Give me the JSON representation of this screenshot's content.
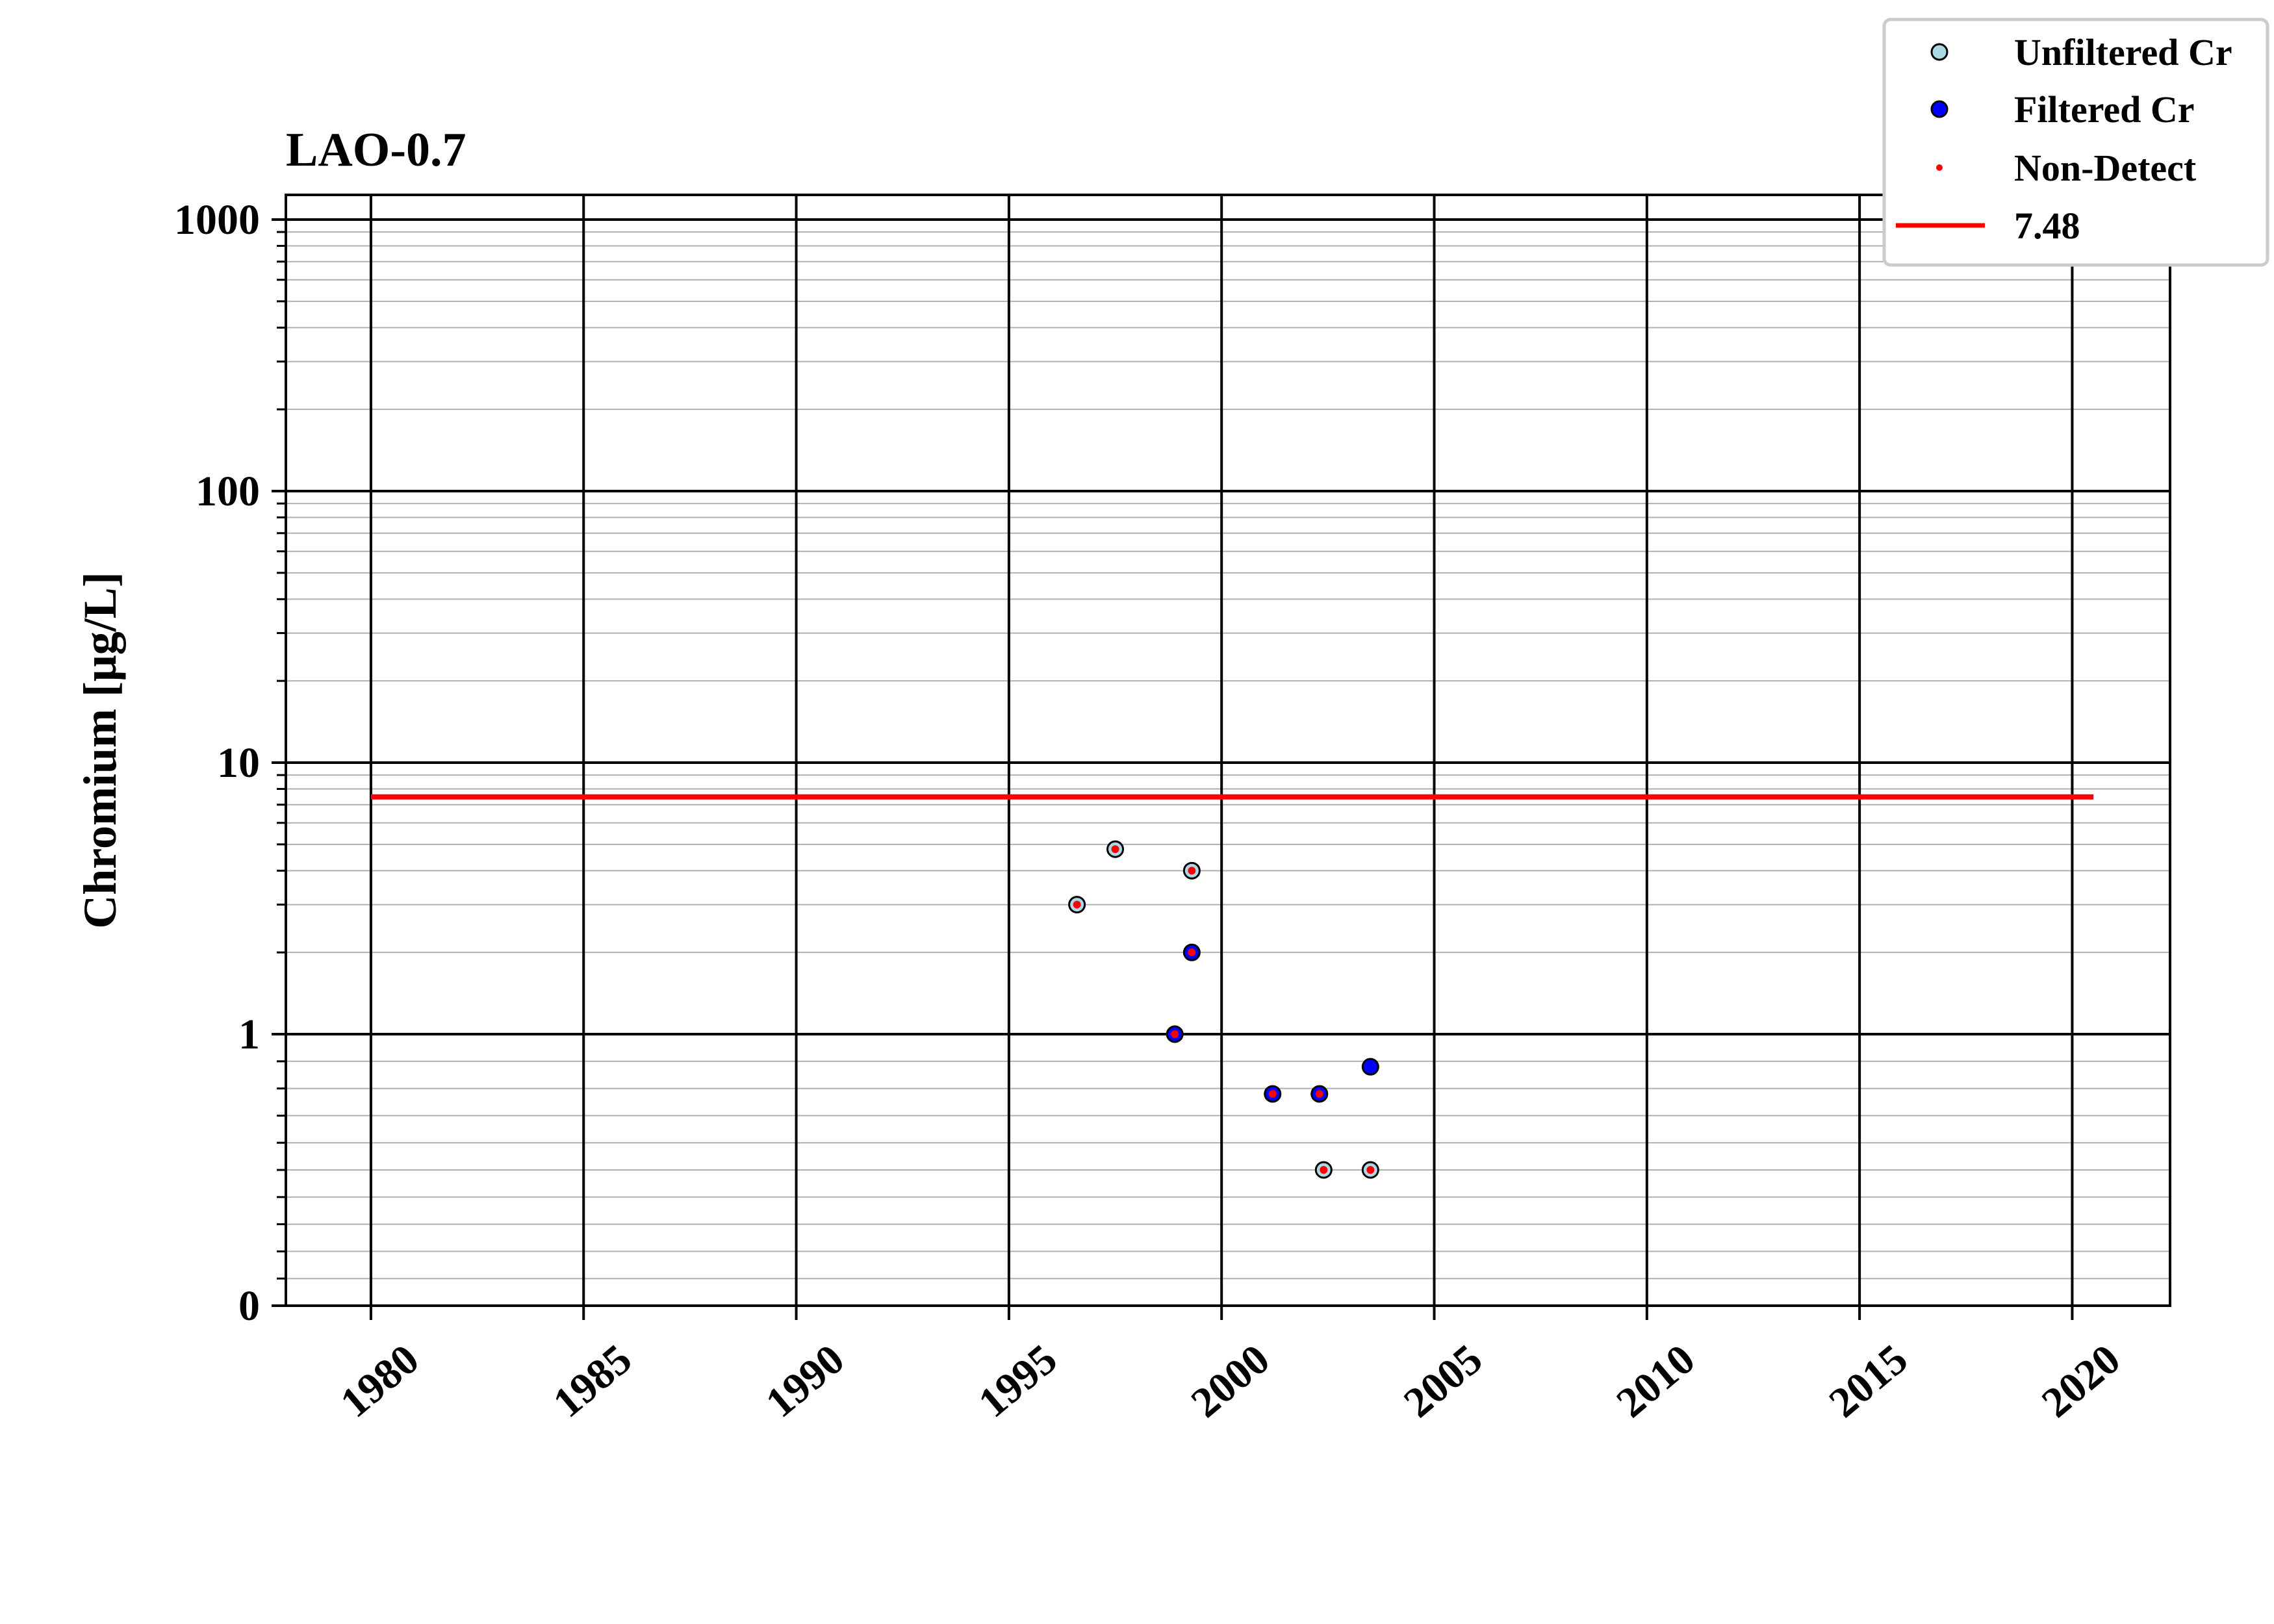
{
  "chart_data": {
    "type": "scatter",
    "title": "LAO-0.7",
    "xlabel": "",
    "ylabel": "Chromium [μg/L]",
    "y_scale": "symlog",
    "xlim": [
      1978,
      2022.3
    ],
    "ylim": [
      0,
      1000
    ],
    "x_ticks": [
      1980,
      1985,
      1990,
      1995,
      2000,
      2005,
      2010,
      2015,
      2020
    ],
    "y_ticks": [
      0,
      1,
      10,
      100,
      1000
    ],
    "y_tick_labels": [
      "0",
      "1",
      "10",
      "100",
      "1000"
    ],
    "grid": true,
    "legend_position": "top-right, outside plot",
    "series": [
      {
        "name": "Unfiltered Cr",
        "color": "#add8e6",
        "points": [
          {
            "x": 1996.6,
            "y": 3.0
          },
          {
            "x": 1997.5,
            "y": 4.8
          },
          {
            "x": 1999.3,
            "y": 4.0
          },
          {
            "x": 2002.4,
            "y": 0.5
          },
          {
            "x": 2003.5,
            "y": 0.5
          }
        ]
      },
      {
        "name": "Filtered Cr",
        "color": "#0000ff",
        "points": [
          {
            "x": 1998.9,
            "y": 1.0
          },
          {
            "x": 1999.3,
            "y": 2.0
          },
          {
            "x": 2001.2,
            "y": 0.78
          },
          {
            "x": 2002.3,
            "y": 0.78
          },
          {
            "x": 2003.5,
            "y": 0.88
          }
        ]
      },
      {
        "name": "Non-Detect",
        "color": "#ff0000",
        "points": [
          {
            "x": 1996.6,
            "y": 3.0
          },
          {
            "x": 1997.5,
            "y": 4.8
          },
          {
            "x": 1999.3,
            "y": 4.0
          },
          {
            "x": 1999.3,
            "y": 2.0
          },
          {
            "x": 1998.9,
            "y": 1.0
          },
          {
            "x": 2001.2,
            "y": 0.78
          },
          {
            "x": 2002.3,
            "y": 0.78
          },
          {
            "x": 2002.4,
            "y": 0.5
          },
          {
            "x": 2003.5,
            "y": 0.5
          }
        ]
      }
    ],
    "reference_line": {
      "name": "7.48",
      "value": 7.48,
      "x_range": [
        1980,
        2020.5
      ],
      "color": "#ff0000"
    }
  }
}
